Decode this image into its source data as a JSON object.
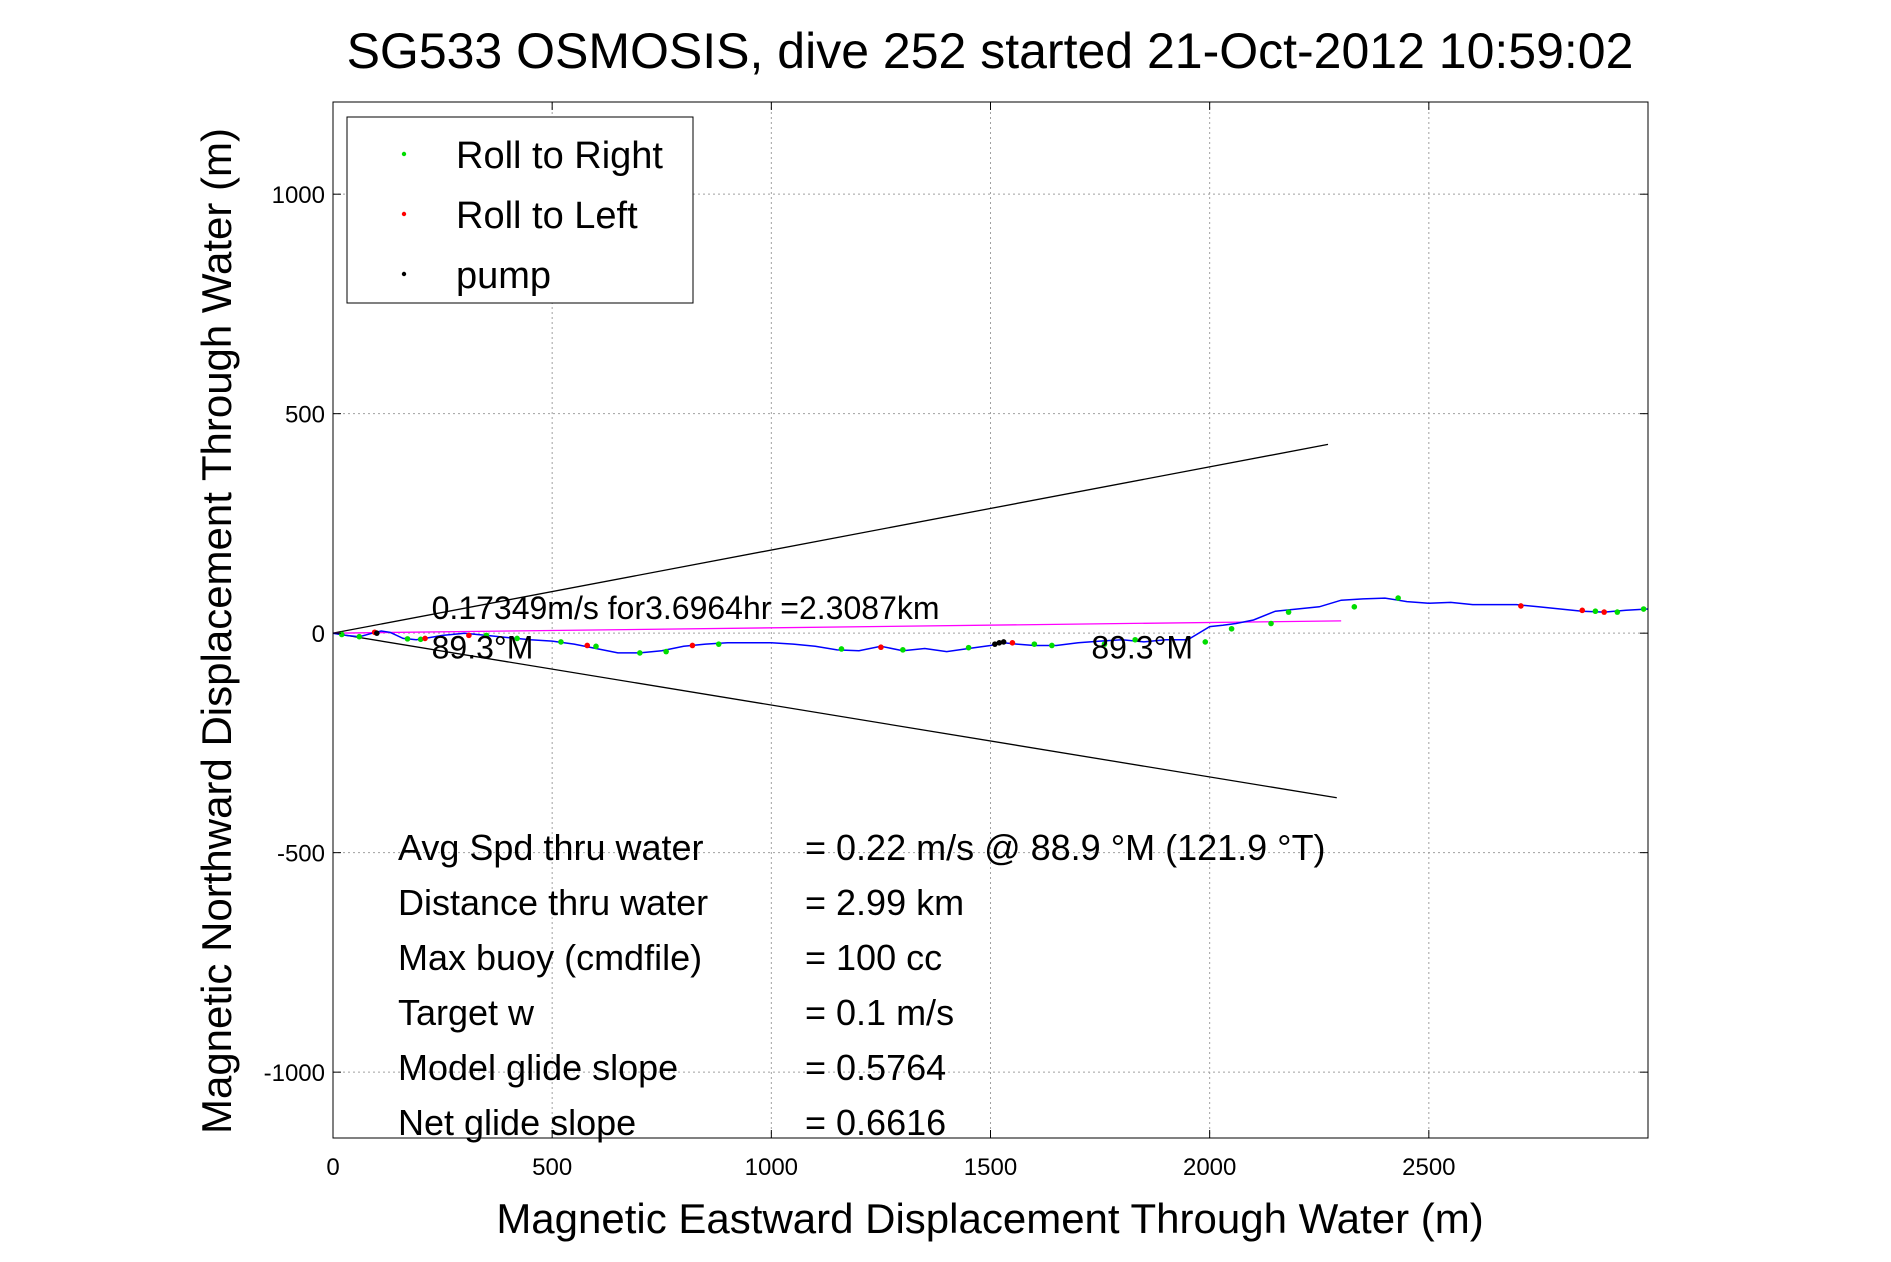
{
  "chart_data": {
    "type": "scatter",
    "title": "SG533 OSMOSIS, dive 252 started 21-Oct-2012 10:59:02",
    "xlabel": "Magnetic Eastward Displacement Through Water (m)",
    "ylabel": "Magnetic Northward Displacement Through Water (m)",
    "xlim": [
      0,
      3000
    ],
    "ylim": [
      -1150,
      1210
    ],
    "xticks": [
      0,
      500,
      1000,
      1500,
      2000,
      2500
    ],
    "yticks": [
      -1000,
      -500,
      0,
      500,
      1000
    ],
    "grid": true,
    "legend": {
      "position": "top-left",
      "entries": [
        {
          "label": "Roll to Right",
          "color": "#00dd00"
        },
        {
          "label": "Roll to Left",
          "color": "#ff0000"
        },
        {
          "label": "pump",
          "color": "#000000"
        }
      ]
    },
    "colors": {
      "track": "#0000ff",
      "vector": "#ff00ff",
      "cone": "#000000",
      "roll_right": "#00dd00",
      "roll_left": "#ff0000",
      "pump": "#000000"
    },
    "track": {
      "x": [
        0,
        30,
        60,
        90,
        110,
        130,
        160,
        190,
        220,
        250,
        300,
        350,
        400,
        450,
        500,
        550,
        600,
        650,
        700,
        750,
        800,
        850,
        900,
        950,
        1000,
        1050,
        1100,
        1150,
        1200,
        1250,
        1300,
        1350,
        1400,
        1450,
        1500,
        1530,
        1560,
        1600,
        1650,
        1700,
        1750,
        1800,
        1850,
        1900,
        1950,
        2000,
        2030,
        2060,
        2100,
        2150,
        2200,
        2250,
        2300,
        2350,
        2400,
        2450,
        2500,
        2550,
        2600,
        2650,
        2700,
        2750,
        2800,
        2850,
        2900,
        2950,
        3000
      ],
      "y": [
        0,
        -5,
        -8,
        0,
        5,
        2,
        -12,
        -15,
        -10,
        -5,
        0,
        -5,
        -10,
        -15,
        -18,
        -25,
        -35,
        -45,
        -45,
        -40,
        -30,
        -25,
        -22,
        -22,
        -22,
        -25,
        -30,
        -38,
        -40,
        -30,
        -40,
        -35,
        -42,
        -35,
        -28,
        -22,
        -25,
        -28,
        -28,
        -22,
        -18,
        -15,
        -20,
        -15,
        -15,
        15,
        18,
        22,
        30,
        50,
        55,
        60,
        75,
        78,
        80,
        72,
        68,
        70,
        65,
        65,
        65,
        60,
        55,
        50,
        48,
        52,
        55
      ]
    },
    "roll_right": {
      "x": [
        20,
        60,
        170,
        200,
        350,
        420,
        520,
        600,
        700,
        760,
        880,
        1160,
        1300,
        1450,
        1600,
        1640,
        1760,
        1830,
        1990,
        2050,
        2140,
        2180,
        2330,
        2430,
        2880,
        2930,
        2990
      ],
      "y": [
        -3,
        -8,
        -13,
        -14,
        -5,
        -12,
        -20,
        -30,
        -45,
        -42,
        -25,
        -36,
        -38,
        -33,
        -25,
        -28,
        -25,
        -15,
        -20,
        10,
        22,
        48,
        60,
        80,
        50,
        48,
        55
      ]
    },
    "roll_left": {
      "x": [
        95,
        210,
        310,
        580,
        820,
        1250,
        1550,
        2710,
        2850,
        2900
      ],
      "y": [
        2,
        -12,
        -5,
        -28,
        -28,
        -32,
        -22,
        62,
        52,
        48
      ]
    },
    "pump": {
      "x": [
        100,
        1510,
        1520,
        1530
      ],
      "y": [
        0,
        -25,
        -22,
        -20
      ]
    },
    "heading_lines": [
      {
        "name": "desired-heading-upper",
        "x": [
          0,
          2270
        ],
        "y": [
          0,
          430
        ]
      },
      {
        "name": "desired-heading-lower",
        "x": [
          0,
          2290
        ],
        "y": [
          0,
          -375
        ]
      },
      {
        "name": "current-vector",
        "x": [
          0,
          2300
        ],
        "y": [
          0,
          28
        ]
      }
    ],
    "annotations": {
      "vector_text": "0.17349m/s for3.6964hr =2.3087km",
      "heading_left": "89.3°M",
      "heading_right": "89.3°M"
    },
    "stats": [
      {
        "label": "Avg Spd thru water",
        "value": "=  0.22 m/s @  88.9 °M (121.9 °T)"
      },
      {
        "label": "Distance thru water",
        "value": "=  2.99 km"
      },
      {
        "label": "Max buoy (cmdfile)",
        "value": "= 100 cc"
      },
      {
        "label": "Target w",
        "value": "= 0.1 m/s"
      },
      {
        "label": "Model glide slope",
        "value": "= 0.5764"
      },
      {
        "label": "Net glide slope",
        "value": "= 0.6616"
      }
    ]
  }
}
